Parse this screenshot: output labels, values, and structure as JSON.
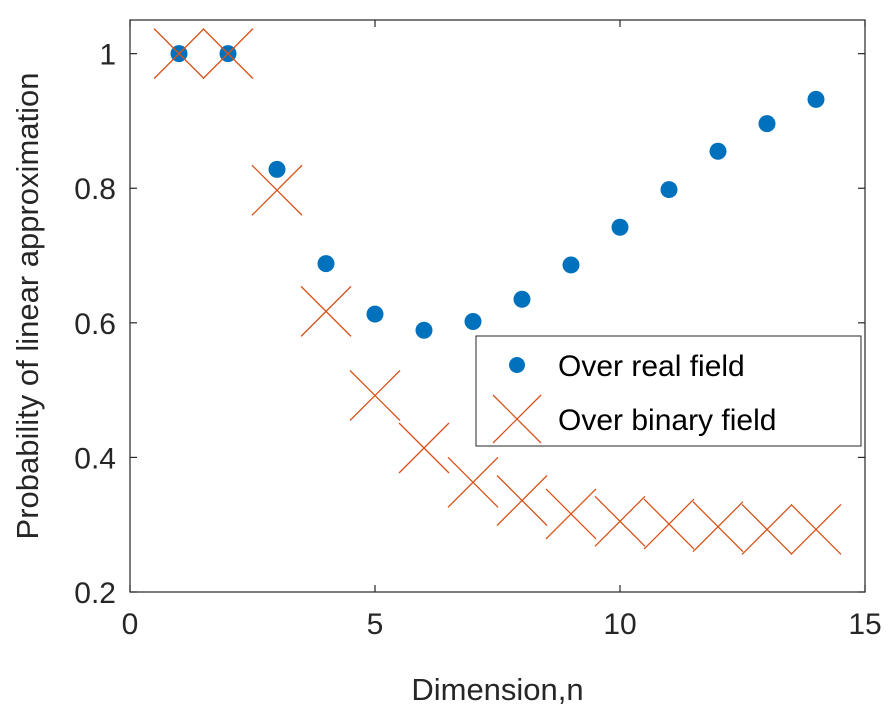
{
  "chart_data": {
    "type": "scatter",
    "title": "",
    "xlabel": "Dimension,n",
    "ylabel": "Probability of linear approximation",
    "xlim": [
      0,
      15
    ],
    "ylim": [
      0.2,
      1.05
    ],
    "xticks": [
      0,
      5,
      10,
      15
    ],
    "xtick_labels": [
      "0",
      "5",
      "10",
      "15"
    ],
    "yticks": [
      0.2,
      0.4,
      0.6,
      0.8,
      1.0
    ],
    "ytick_labels": [
      "0.2",
      "0.4",
      "0.6",
      "0.8",
      "1"
    ],
    "grid": false,
    "legend_position": "center-right",
    "series": [
      {
        "name": "Over real field",
        "marker": "filled-circle",
        "color": "#0072BD",
        "x": [
          1,
          2,
          3,
          4,
          5,
          6,
          7,
          8,
          9,
          10,
          11,
          12,
          13,
          14
        ],
        "y": [
          1.0,
          1.0,
          0.828,
          0.688,
          0.613,
          0.589,
          0.602,
          0.635,
          0.686,
          0.742,
          0.798,
          0.855,
          0.896,
          0.932
        ]
      },
      {
        "name": "Over binary field",
        "marker": "x-cross",
        "color": "#D95319",
        "x": [
          1,
          2,
          3,
          4,
          5,
          6,
          7,
          8,
          9,
          10,
          11,
          12,
          13,
          14
        ],
        "y": [
          1.0,
          1.0,
          0.797,
          0.617,
          0.492,
          0.414,
          0.363,
          0.336,
          0.316,
          0.305,
          0.301,
          0.297,
          0.293,
          0.293
        ]
      }
    ]
  }
}
